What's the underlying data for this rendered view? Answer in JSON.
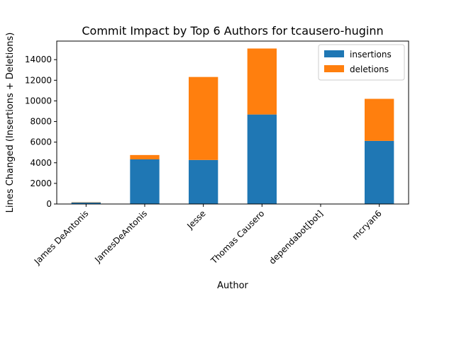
{
  "chart_data": {
    "type": "bar",
    "stacked": true,
    "title": "Commit Impact by Top 6 Authors for tcausero-huginn",
    "xlabel": "Author",
    "ylabel": "Lines Changed (Insertions + Deletions)",
    "categories": [
      "James DeAntonis",
      "JamesDeAntonis",
      "Jesse",
      "Thomas Causero",
      "dependabot[bot]",
      "mcryan6"
    ],
    "series": [
      {
        "name": "insertions",
        "color": "#1f77b4",
        "values": [
          150,
          4330,
          4270,
          8680,
          10,
          6120
        ]
      },
      {
        "name": "deletions",
        "color": "#ff7f0e",
        "values": [
          30,
          420,
          8050,
          6400,
          5,
          4080
        ]
      }
    ],
    "ylim": [
      0,
      15800
    ],
    "yticks": [
      0,
      2000,
      4000,
      6000,
      8000,
      10000,
      12000,
      14000
    ],
    "ytick_labels": [
      "0",
      "2000",
      "4000",
      "6000",
      "8000",
      "10000",
      "12000",
      "14000"
    ],
    "legend_position": "top-right",
    "grid": false
  }
}
